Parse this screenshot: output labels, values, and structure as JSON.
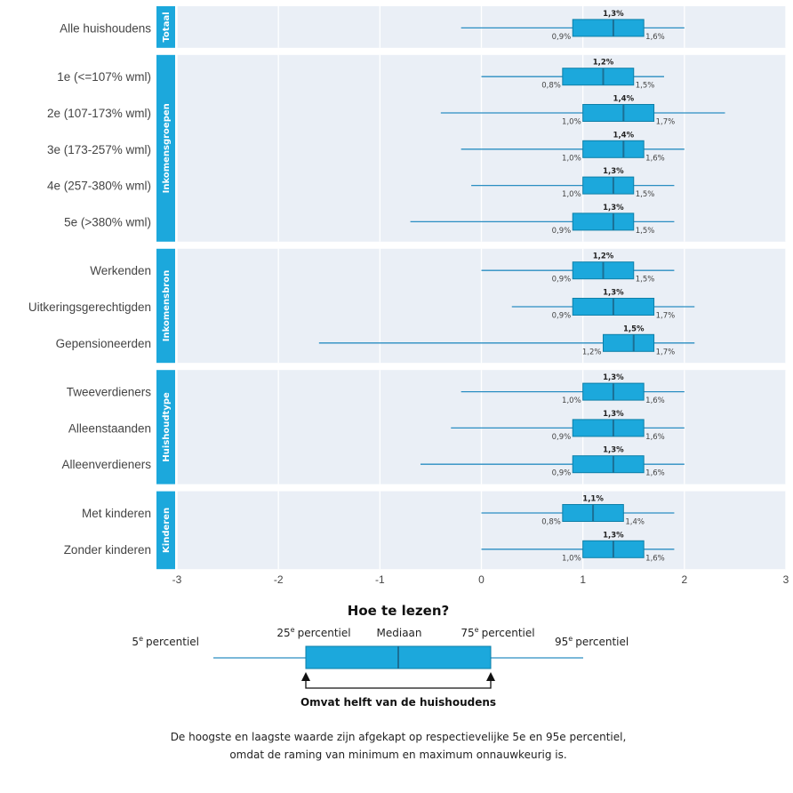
{
  "colors": {
    "box": "#1ca8dc",
    "box_stroke": "#0d7fa8",
    "median": "#1b6f95",
    "whisker": "#2a8ec2",
    "panel": "#eaeff6",
    "grid": "#ffffff",
    "tab": "#1ca8dc"
  },
  "chart_data": {
    "type": "boxplot",
    "xlim": [
      -3,
      3
    ],
    "x_ticks": [
      "-3",
      "-2",
      "-1",
      "0",
      "1",
      "2",
      "3"
    ],
    "x_tick_values": [
      -3,
      -2,
      -1,
      0,
      1,
      2,
      3
    ],
    "groups": [
      {
        "name": "Totaal",
        "rows": [
          {
            "label": "Alle huishoudens",
            "p5": -0.2,
            "q1": 0.9,
            "median": 1.3,
            "q3": 1.6,
            "p95": 2.0,
            "q1_label": "0,9%",
            "median_label": "1,3%",
            "q3_label": "1,6%"
          }
        ]
      },
      {
        "name": "Inkomensgroepen",
        "rows": [
          {
            "label": "1e (<=107% wml)",
            "p5": 0.0,
            "q1": 0.8,
            "median": 1.2,
            "q3": 1.5,
            "p95": 1.8,
            "q1_label": "0,8%",
            "median_label": "1,2%",
            "q3_label": "1,5%"
          },
          {
            "label": "2e (107-173% wml)",
            "p5": -0.4,
            "q1": 1.0,
            "median": 1.4,
            "q3": 1.7,
            "p95": 2.4,
            "q1_label": "1,0%",
            "median_label": "1,4%",
            "q3_label": "1,7%"
          },
          {
            "label": "3e (173-257% wml)",
            "p5": -0.2,
            "q1": 1.0,
            "median": 1.4,
            "q3": 1.6,
            "p95": 2.0,
            "q1_label": "1,0%",
            "median_label": "1,4%",
            "q3_label": "1,6%"
          },
          {
            "label": "4e (257-380% wml)",
            "p5": -0.1,
            "q1": 1.0,
            "median": 1.3,
            "q3": 1.5,
            "p95": 1.9,
            "q1_label": "1,0%",
            "median_label": "1,3%",
            "q3_label": "1,5%"
          },
          {
            "label": "5e (>380% wml)",
            "p5": -0.7,
            "q1": 0.9,
            "median": 1.3,
            "q3": 1.5,
            "p95": 1.9,
            "q1_label": "0,9%",
            "median_label": "1,3%",
            "q3_label": "1,5%"
          }
        ]
      },
      {
        "name": "Inkomensbron",
        "rows": [
          {
            "label": "Werkenden",
            "p5": 0.0,
            "q1": 0.9,
            "median": 1.2,
            "q3": 1.5,
            "p95": 1.9,
            "q1_label": "0,9%",
            "median_label": "1,2%",
            "q3_label": "1,5%"
          },
          {
            "label": "Uitkeringsgerechtigden",
            "p5": 0.3,
            "q1": 0.9,
            "median": 1.3,
            "q3": 1.7,
            "p95": 2.1,
            "q1_label": "0,9%",
            "median_label": "1,3%",
            "q3_label": "1,7%"
          },
          {
            "label": "Gepensioneerden",
            "p5": -1.6,
            "q1": 1.2,
            "median": 1.5,
            "q3": 1.7,
            "p95": 2.1,
            "q1_label": "1,2%",
            "median_label": "1,5%",
            "q3_label": "1,7%"
          }
        ]
      },
      {
        "name": "Huishoudtype",
        "rows": [
          {
            "label": "Tweeverdieners",
            "p5": -0.2,
            "q1": 1.0,
            "median": 1.3,
            "q3": 1.6,
            "p95": 2.0,
            "q1_label": "1,0%",
            "median_label": "1,3%",
            "q3_label": "1,6%"
          },
          {
            "label": "Alleenstaanden",
            "p5": -0.3,
            "q1": 0.9,
            "median": 1.3,
            "q3": 1.6,
            "p95": 2.0,
            "q1_label": "0,9%",
            "median_label": "1,3%",
            "q3_label": "1,6%"
          },
          {
            "label": "Alleenverdieners",
            "p5": -0.6,
            "q1": 0.9,
            "median": 1.3,
            "q3": 1.6,
            "p95": 2.0,
            "q1_label": "0,9%",
            "median_label": "1,3%",
            "q3_label": "1,6%"
          }
        ]
      },
      {
        "name": "Kinderen",
        "rows": [
          {
            "label": "Met kinderen",
            "p5": 0.0,
            "q1": 0.8,
            "median": 1.1,
            "q3": 1.4,
            "p95": 1.9,
            "q1_label": "0,8%",
            "median_label": "1,1%",
            "q3_label": "1,4%"
          },
          {
            "label": "Zonder kinderen",
            "p5": 0.0,
            "q1": 1.0,
            "median": 1.3,
            "q3": 1.6,
            "p95": 1.9,
            "q1_label": "1,0%",
            "median_label": "1,3%",
            "q3_label": "1,6%"
          }
        ]
      }
    ]
  },
  "legend": {
    "title": "Hoe te lezen?",
    "p5": {
      "num": "5",
      "sup": "e",
      "text": "percentiel"
    },
    "p25": {
      "num": "25",
      "sup": "e",
      "text": "percentiel"
    },
    "median": "Mediaan",
    "p75": {
      "num": "75",
      "sup": "e",
      "text": "percentiel"
    },
    "p95": {
      "num": "95",
      "sup": "e",
      "text": "percentiel"
    },
    "span_label": "Omvat helft van de huishoudens"
  },
  "note": {
    "line1": "De hoogste en laagste waarde zijn afgekapt op respectievelijke 5e en 95e percentiel,",
    "line2": "omdat de raming van minimum en maximum onnauwkeurig is."
  }
}
